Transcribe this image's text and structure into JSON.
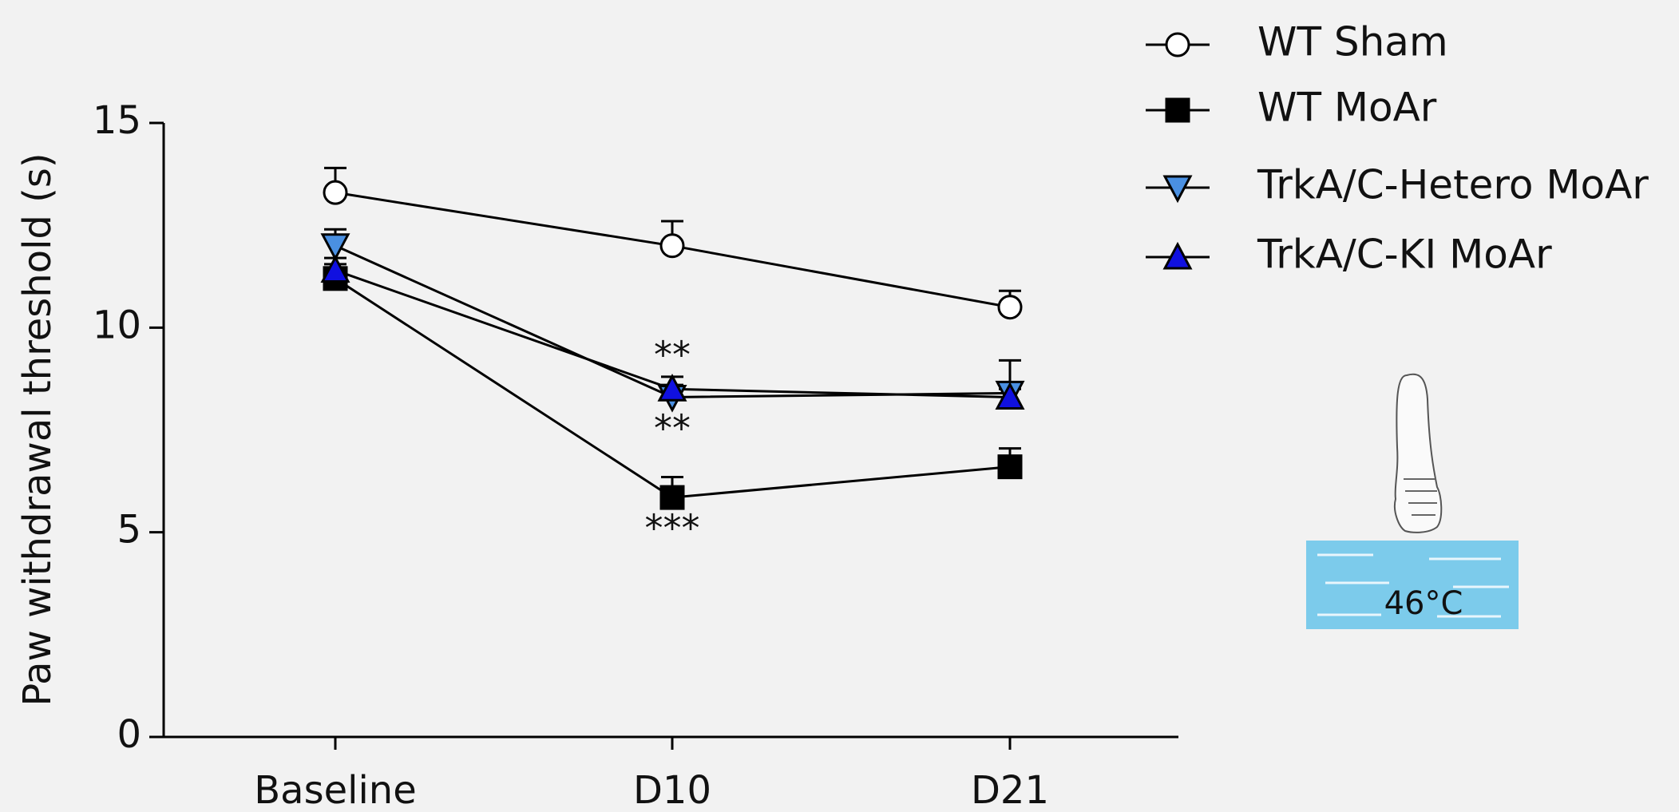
{
  "chart_data": {
    "type": "line",
    "y_label": "Paw withdrawal threshold (s)",
    "categories": [
      "Baseline",
      "D10",
      "D21"
    ],
    "ylim": [
      0,
      15
    ],
    "yticks": [
      0,
      5,
      10,
      15
    ],
    "series": [
      {
        "name": "WT Sham",
        "color": "#ffffff",
        "marker": "circle",
        "values": [
          13.3,
          12.0,
          10.5
        ],
        "errors": [
          0.6,
          0.6,
          0.4
        ]
      },
      {
        "name": "WT MoAr",
        "color": "#000000",
        "marker": "square",
        "values": [
          11.2,
          5.85,
          6.6
        ],
        "errors": [
          0.35,
          0.5,
          0.45
        ]
      },
      {
        "name": "TrkA/C-Hetero MoAr",
        "color": "#4a90e2",
        "marker": "triangle-down",
        "values": [
          12.0,
          8.3,
          8.4
        ],
        "errors": [
          0.4,
          0.3,
          0.8
        ]
      },
      {
        "name": "TrkA/C-KI MoAr",
        "color": "#1010e0",
        "marker": "triangle-up",
        "values": [
          11.4,
          8.5,
          8.3
        ],
        "errors": [
          0.3,
          0.3,
          0.2
        ]
      }
    ],
    "annotations": [
      "**",
      "**",
      "***"
    ],
    "illustration_label": "46°C"
  }
}
